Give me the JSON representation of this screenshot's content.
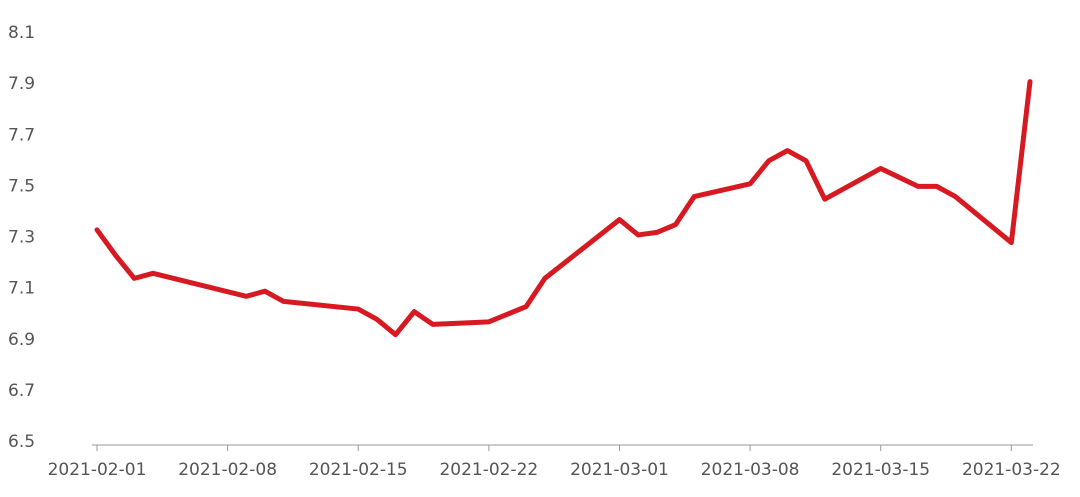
{
  "chart_data": {
    "type": "line",
    "x": [
      "2021-02-01",
      "2021-02-02",
      "2021-02-03",
      "2021-02-04",
      "2021-02-09",
      "2021-02-10",
      "2021-02-11",
      "2021-02-15",
      "2021-02-16",
      "2021-02-17",
      "2021-02-18",
      "2021-02-19",
      "2021-02-22",
      "2021-02-24",
      "2021-02-25",
      "2021-03-01",
      "2021-03-02",
      "2021-03-03",
      "2021-03-04",
      "2021-03-05",
      "2021-03-08",
      "2021-03-09",
      "2021-03-10",
      "2021-03-11",
      "2021-03-12",
      "2021-03-15",
      "2021-03-17",
      "2021-03-18",
      "2021-03-19",
      "2021-03-22",
      "2021-03-23"
    ],
    "series": [
      {
        "color": "#d71a21",
        "values": [
          7.33,
          7.23,
          7.14,
          7.16,
          7.07,
          7.09,
          7.05,
          7.02,
          6.98,
          6.92,
          7.01,
          6.96,
          6.97,
          7.03,
          7.14,
          7.37,
          7.31,
          7.32,
          7.35,
          7.46,
          7.51,
          7.6,
          7.64,
          7.6,
          7.45,
          7.57,
          7.5,
          7.5,
          7.46,
          7.28,
          7.91
        ]
      }
    ],
    "xlim": [
      "2021-02-01",
      "2021-03-23"
    ],
    "xticks": [
      "2021-02-01",
      "2021-02-08",
      "2021-02-15",
      "2021-02-22",
      "2021-03-01",
      "2021-03-08",
      "2021-03-15",
      "2021-03-22"
    ],
    "ylim": [
      6.5,
      8.1
    ],
    "yticks": [
      6.5,
      6.7,
      6.9,
      7.1,
      7.3,
      7.5,
      7.7,
      7.9,
      8.1
    ],
    "grid": false
  }
}
